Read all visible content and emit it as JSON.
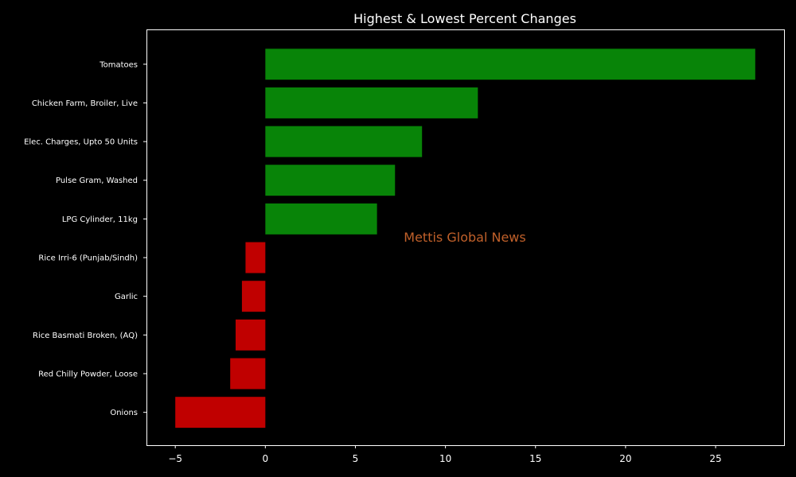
{
  "chart_data": {
    "type": "bar",
    "orientation": "horizontal",
    "title": "Highest & Lowest Percent Changes",
    "xlabel": "",
    "ylabel": "",
    "categories": [
      "Tomatoes",
      "Chicken Farm, Broiler, Live",
      "Elec. Charges, Upto 50 Units",
      "Pulse Gram, Washed",
      "LPG Cylinder, 11kg",
      "Rice Irri-6 (Punjab/Sindh)",
      "Garlic",
      "Rice Basmati Broken, (AQ)",
      "Red Chilly Powder, Loose",
      "Onions"
    ],
    "values": [
      27.2,
      11.8,
      8.7,
      7.2,
      6.2,
      -1.1,
      -1.3,
      -1.65,
      -1.95,
      -5.0
    ],
    "xlim": [
      -6.6,
      28.8
    ],
    "xticks": [
      -5,
      0,
      5,
      10,
      15,
      20,
      25
    ],
    "grid": false,
    "colors": {
      "positive": "#088408",
      "negative": "#c00000",
      "background": "#000000",
      "axes": "#ffffff",
      "text": "#ffffff"
    }
  },
  "watermark": {
    "text": "Mettis Global News",
    "color": "#c0602a"
  }
}
